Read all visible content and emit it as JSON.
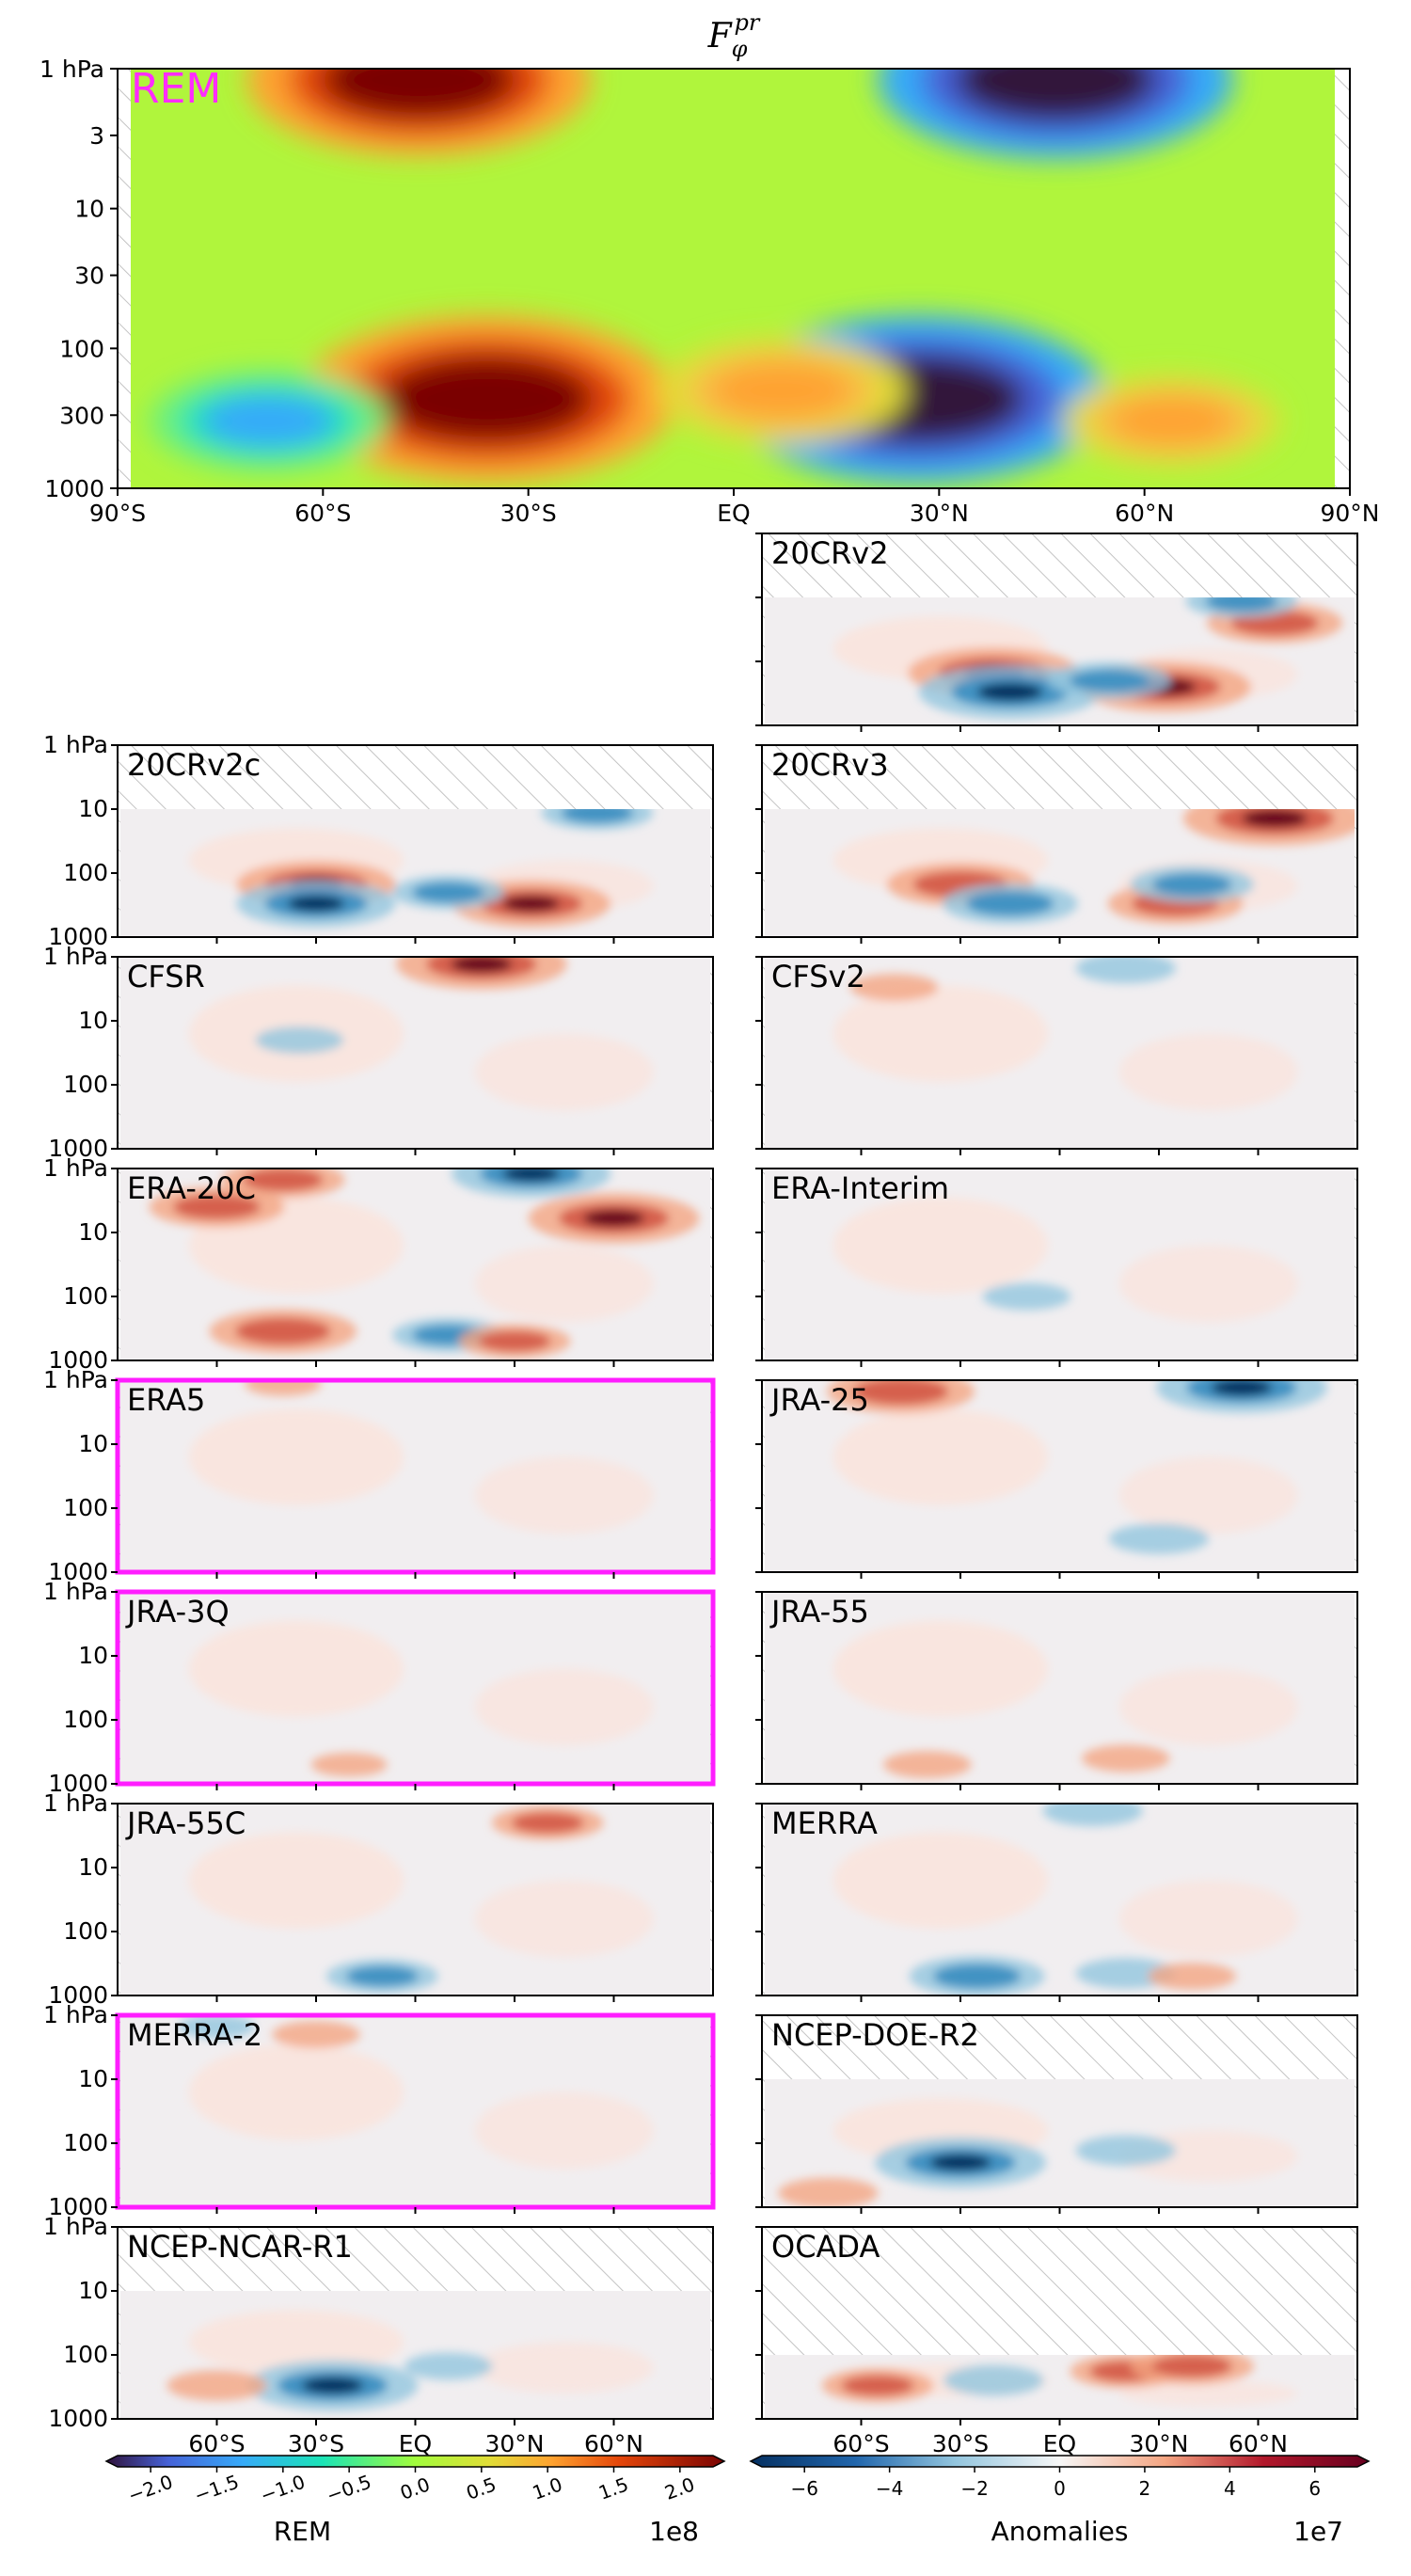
{
  "title": "F",
  "title_sub": "φ",
  "title_sup": "pr",
  "colors": {
    "highlight": "#ff1dff",
    "rem_bg": "#b0f53c",
    "anom_bg": "#f1eef0",
    "hatch": "#bdbdbd"
  },
  "chart_data": {
    "type": "heatmap",
    "x_ticks": [
      "90°S",
      "60°S",
      "30°S",
      "EQ",
      "30°N",
      "60°N",
      "90°N"
    ],
    "x_ticks_small": [
      "60°S",
      "30°S",
      "EQ",
      "30°N",
      "60°N"
    ],
    "y_ticks_main": [
      "1 hPa",
      "3",
      "10",
      "30",
      "100",
      "300",
      "1000"
    ],
    "y_ticks_small": [
      "1 hPa",
      "10",
      "100",
      "1000"
    ],
    "xlim": [
      -90,
      90
    ],
    "ylim_hpa": [
      1000,
      1
    ],
    "y_scale": "log",
    "rem_panel": {
      "label": "REM",
      "features": [
        {
          "lat": -46,
          "p": 1.2,
          "sign": "positive",
          "strength": 0.85
        },
        {
          "lat": 47,
          "p": 1.2,
          "sign": "negative",
          "strength": 0.9
        },
        {
          "lat": -36,
          "p": 230,
          "sign": "positive",
          "strength": 1.0
        },
        {
          "lat": 27,
          "p": 230,
          "sign": "negative",
          "strength": 1.0
        },
        {
          "lat": 7,
          "p": 200,
          "sign": "positive",
          "strength": 0.4
        },
        {
          "lat": -68,
          "p": 330,
          "sign": "negative",
          "strength": 0.35
        },
        {
          "lat": 64,
          "p": 330,
          "sign": "positive",
          "strength": 0.25
        }
      ]
    },
    "panels": [
      {
        "label": "20CRv2",
        "highlight": false,
        "data_top_hpa": 10
      },
      {
        "label": "20CRv2c",
        "highlight": false,
        "data_top_hpa": 10
      },
      {
        "label": "20CRv3",
        "highlight": false,
        "data_top_hpa": 10
      },
      {
        "label": "CFSR",
        "highlight": false,
        "data_top_hpa": 1
      },
      {
        "label": "CFSv2",
        "highlight": false,
        "data_top_hpa": 1
      },
      {
        "label": "ERA-20C",
        "highlight": false,
        "data_top_hpa": 1
      },
      {
        "label": "ERA-Interim",
        "highlight": false,
        "data_top_hpa": 1
      },
      {
        "label": "ERA5",
        "highlight": true,
        "data_top_hpa": 1
      },
      {
        "label": "JRA-25",
        "highlight": false,
        "data_top_hpa": 1
      },
      {
        "label": "JRA-3Q",
        "highlight": true,
        "data_top_hpa": 1
      },
      {
        "label": "JRA-55",
        "highlight": false,
        "data_top_hpa": 1
      },
      {
        "label": "JRA-55C",
        "highlight": false,
        "data_top_hpa": 1
      },
      {
        "label": "MERRA",
        "highlight": false,
        "data_top_hpa": 1
      },
      {
        "label": "MERRA-2",
        "highlight": true,
        "data_top_hpa": 1
      },
      {
        "label": "NCEP-DOE-R2",
        "highlight": false,
        "data_top_hpa": 10
      },
      {
        "label": "NCEP-NCAR-R1",
        "highlight": false,
        "data_top_hpa": 10
      },
      {
        "label": "OCADA",
        "highlight": false,
        "data_top_hpa": 100
      }
    ],
    "colorbar_rem": {
      "label": "REM",
      "ticks": [
        "−2.0",
        "−1.5",
        "−1.0",
        "−0.5",
        "0.0",
        "0.5",
        "1.0",
        "1.5",
        "2.0"
      ],
      "range": [
        -2.2,
        2.2
      ],
      "scale_text": "1e8",
      "colormap": "turbo"
    },
    "colorbar_anom": {
      "label": "Anomalies",
      "ticks": [
        "−6",
        "−4",
        "−2",
        "0",
        "2",
        "4",
        "6"
      ],
      "range": [
        -7.4,
        7.4
      ],
      "scale_text": "1e7",
      "colormap": "RdBu_r"
    }
  }
}
